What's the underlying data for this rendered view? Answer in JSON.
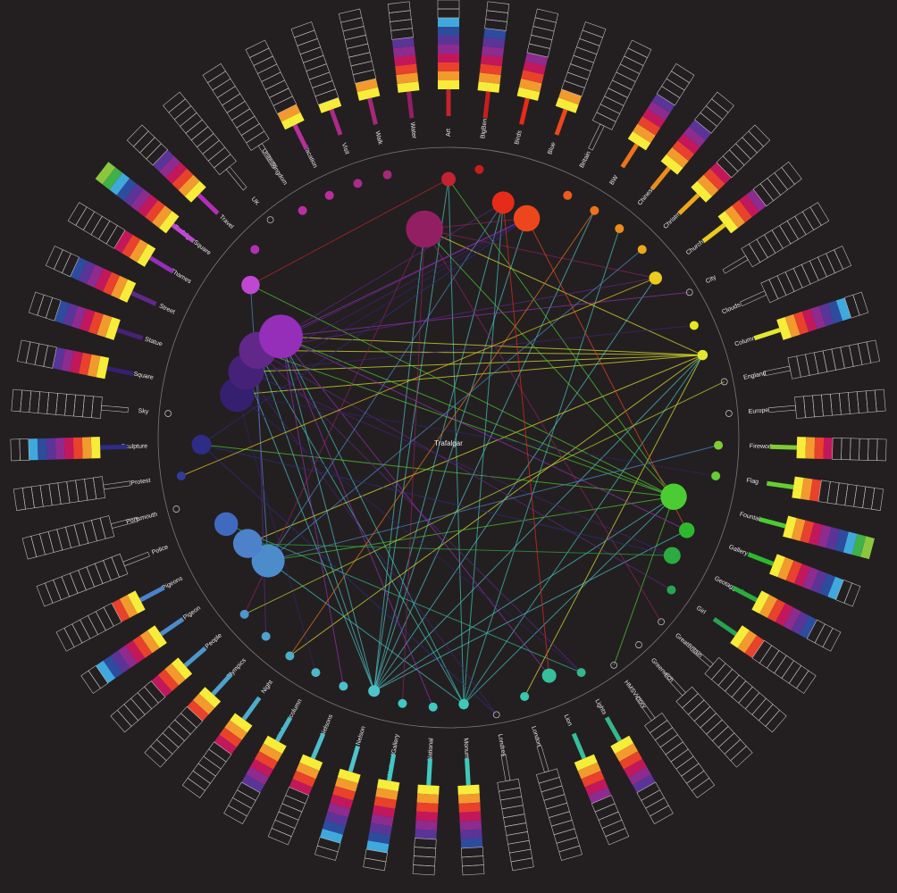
{
  "title": "Trafalgar",
  "stripe_palette": [
    "#f7ec3a",
    "#f29a2e",
    "#e8412c",
    "#c2185b",
    "#8e2b8f",
    "#5a3597",
    "#2e4c9e",
    "#3fa9dd",
    "#3fb04a",
    "#8cc63f"
  ],
  "nodes": [
    {
      "label": "Art",
      "size": 8,
      "filled": 8,
      "color": "hsl(355,70%,45%)"
    },
    {
      "label": "BigBen",
      "size": 4,
      "filled": 7,
      "color": "hsl(0,75%,45%)"
    },
    {
      "label": "Birds",
      "size": 14,
      "filled": 5,
      "color": "hsl(5,80%,50%)"
    },
    {
      "label": "Blue",
      "size": 17,
      "filled": 2,
      "color": "hsl(12,85%,52%)"
    },
    {
      "label": "Britain",
      "size": 4,
      "filled": 0,
      "color": "hsl(18,85%,52%)"
    },
    {
      "label": "BW",
      "size": 4,
      "filled": 6,
      "color": "hsl(25,85%,52%)"
    },
    {
      "label": "Chinese",
      "size": 4,
      "filled": 6,
      "color": "hsl(32,85%,52%)"
    },
    {
      "label": "Christmas",
      "size": 4,
      "filled": 4,
      "color": "hsl(40,85%,52%)"
    },
    {
      "label": "Church",
      "size": 7,
      "filled": 5,
      "color": "hsl(50,85%,52%)"
    },
    {
      "label": "City",
      "size": 0,
      "filled": 0,
      "color": "hsl(58,80%,52%)"
    },
    {
      "label": "Clouds",
      "size": 4,
      "filled": 0,
      "color": "hsl(60,80%,52%)"
    },
    {
      "label": "Column",
      "size": 5,
      "filled": 8,
      "color": "hsl(62,80%,55%)"
    },
    {
      "label": "England",
      "size": 0,
      "filled": 0,
      "color": "hsl(70,70%,52%)"
    },
    {
      "label": "Europe",
      "size": 0,
      "filled": 0,
      "color": "hsl(80,65%,50%)"
    },
    {
      "label": "Fireworks",
      "size": 4,
      "filled": 4,
      "color": "hsl(90,60%,50%)"
    },
    {
      "label": "Flag",
      "size": 4,
      "filled": 3,
      "color": "hsl(100,60%,50%)"
    },
    {
      "label": "Fountain",
      "size": 17,
      "filled": 10,
      "color": "hsl(110,60%,50%)"
    },
    {
      "label": "Gallery",
      "size": 9,
      "filled": 8,
      "color": "hsl(120,60%,45%)"
    },
    {
      "label": "Geotagged",
      "size": 10,
      "filled": 7,
      "color": "hsl(130,60%,42%)"
    },
    {
      "label": "Girl",
      "size": 4,
      "filled": 3,
      "color": "hsl(140,60%,40%)"
    },
    {
      "label": "GreatBritain",
      "size": 0,
      "filled": 0,
      "color": "hsl(145,55%,42%)"
    },
    {
      "label": "Greenwich",
      "size": 0,
      "filled": 0,
      "color": "hsl(150,55%,42%)"
    },
    {
      "label": "HMSVictory",
      "size": 0,
      "filled": 0,
      "color": "hsl(155,55%,44%)"
    },
    {
      "label": "Lights",
      "size": 4,
      "filled": 6,
      "color": "hsl(160,55%,46%)"
    },
    {
      "label": "Lion",
      "size": 8,
      "filled": 5,
      "color": "hsl(165,55%,48%)"
    },
    {
      "label": "London",
      "size": 4,
      "filled": 0,
      "color": "hsl(170,55%,50%)"
    },
    {
      "label": "Londres",
      "size": 0,
      "filled": 0,
      "color": "hsl(172,55%,50%)"
    },
    {
      "label": "Monument",
      "size": 5,
      "filled": 7,
      "color": "hsl(175,55%,52%)"
    },
    {
      "label": "National",
      "size": 4,
      "filled": 6,
      "color": "hsl(178,55%,52%)"
    },
    {
      "label": "NationalGallery",
      "size": 4,
      "filled": 8,
      "color": "hsl(180,55%,52%)"
    },
    {
      "label": "Nelson",
      "size": 6,
      "filled": 8,
      "color": "hsl(183,55%,55%)"
    },
    {
      "label": "Nelsons",
      "size": 4,
      "filled": 4,
      "color": "hsl(186,55%,55%)"
    },
    {
      "label": "Nelsonscolumn",
      "size": 4,
      "filled": 6,
      "color": "hsl(190,55%,55%)"
    },
    {
      "label": "Night",
      "size": 4,
      "filled": 4,
      "color": "hsl(195,55%,55%)"
    },
    {
      "label": "Olympics",
      "size": 4,
      "filled": 3,
      "color": "hsl(200,55%,55%)"
    },
    {
      "label": "People",
      "size": 4,
      "filled": 4,
      "color": "hsl(205,55%,55%)"
    },
    {
      "label": "Pigeon",
      "size": 22,
      "filled": 8,
      "color": "hsl(210,55%,55%)"
    },
    {
      "label": "Pigeons",
      "size": 19,
      "filled": 3,
      "color": "hsl(215,55%,55%)"
    },
    {
      "label": "Police",
      "size": 15,
      "filled": 0,
      "color": "hsl(220,50%,50%)"
    },
    {
      "label": "Portsmouth",
      "size": 0,
      "filled": 0,
      "color": "hsl(228,50%,45%)"
    },
    {
      "label": "Protest",
      "size": 4,
      "filled": 0,
      "color": "hsl(235,50%,40%)"
    },
    {
      "label": "Sculpture",
      "size": 12,
      "filled": 8,
      "color": "hsl(240,50%,35%)"
    },
    {
      "label": "Sky",
      "size": 0,
      "filled": 0,
      "color": "hsl(245,50%,32%)"
    },
    {
      "label": "Square",
      "size": 23,
      "filled": 6,
      "color": "hsl(255,55%,28%)"
    },
    {
      "label": "Statue",
      "size": 24,
      "filled": 7,
      "color": "hsl(265,55%,30%)"
    },
    {
      "label": "Street",
      "size": 25,
      "filled": 7,
      "color": "hsl(275,55%,35%)"
    },
    {
      "label": "Thames",
      "size": 30,
      "filled": 4,
      "color": "hsl(285,60%,45%)"
    },
    {
      "label": "TrafalgarSquare",
      "size": 11,
      "filled": 10,
      "color": "hsl(292,60%,55%)"
    },
    {
      "label": "Travel",
      "size": 4,
      "filled": 6,
      "color": "hsl(298,60%,45%)"
    },
    {
      "label": "UK",
      "size": 0,
      "filled": 0,
      "color": "hsl(303,60%,45%)"
    },
    {
      "label": "Unitedkingdom",
      "size": 4,
      "filled": 0,
      "color": "hsl(308,60%,45%)"
    },
    {
      "label": "Vacation",
      "size": 4,
      "filled": 2,
      "color": "hsl(312,60%,45%)"
    },
    {
      "label": "Visit",
      "size": 4,
      "filled": 1,
      "color": "hsl(316,60%,42%)"
    },
    {
      "label": "Walk",
      "size": 4,
      "filled": 2,
      "color": "hsl(320,60%,40%)"
    },
    {
      "label": "Water",
      "size": 25,
      "filled": 6,
      "color": "hsl(325,65%,35%)"
    }
  ],
  "edges": [
    [
      30,
      0
    ],
    [
      30,
      3
    ],
    [
      30,
      5
    ],
    [
      30,
      11
    ],
    [
      30,
      16
    ],
    [
      30,
      17
    ],
    [
      30,
      44
    ],
    [
      30,
      45
    ],
    [
      30,
      46
    ],
    [
      30,
      54
    ],
    [
      30,
      8
    ],
    [
      30,
      2
    ],
    [
      27,
      0
    ],
    [
      27,
      2
    ],
    [
      27,
      11
    ],
    [
      27,
      45
    ],
    [
      27,
      46
    ],
    [
      27,
      36
    ],
    [
      27,
      16
    ],
    [
      27,
      6
    ],
    [
      11,
      45
    ],
    [
      11,
      46
    ],
    [
      11,
      44
    ],
    [
      11,
      43
    ],
    [
      11,
      37
    ],
    [
      11,
      33
    ],
    [
      11,
      25
    ],
    [
      11,
      54
    ],
    [
      16,
      45
    ],
    [
      16,
      46
    ],
    [
      16,
      47
    ],
    [
      16,
      54
    ],
    [
      16,
      36
    ],
    [
      16,
      0
    ],
    [
      16,
      41
    ],
    [
      16,
      22
    ],
    [
      45,
      3
    ],
    [
      45,
      2
    ],
    [
      45,
      19
    ],
    [
      45,
      23
    ],
    [
      45,
      34
    ],
    [
      45,
      8
    ],
    [
      46,
      3
    ],
    [
      46,
      17
    ],
    [
      46,
      24
    ],
    [
      46,
      28
    ],
    [
      46,
      31
    ],
    [
      46,
      9
    ],
    [
      44,
      3
    ],
    [
      44,
      18
    ],
    [
      44,
      26
    ],
    [
      44,
      10
    ],
    [
      54,
      3
    ],
    [
      54,
      8
    ],
    [
      54,
      20
    ],
    [
      54,
      35
    ],
    [
      54,
      29
    ],
    [
      36,
      2
    ],
    [
      36,
      7
    ],
    [
      36,
      14
    ],
    [
      36,
      47
    ],
    [
      43,
      3
    ],
    [
      43,
      15
    ],
    [
      43,
      23
    ],
    [
      43,
      32
    ],
    [
      41,
      3
    ],
    [
      41,
      18
    ],
    [
      41,
      26
    ],
    [
      3,
      17
    ],
    [
      5,
      33
    ],
    [
      8,
      40
    ],
    [
      12,
      35
    ],
    [
      2,
      24
    ],
    [
      0,
      47
    ],
    [
      18,
      37
    ],
    [
      23,
      38
    ]
  ]
}
